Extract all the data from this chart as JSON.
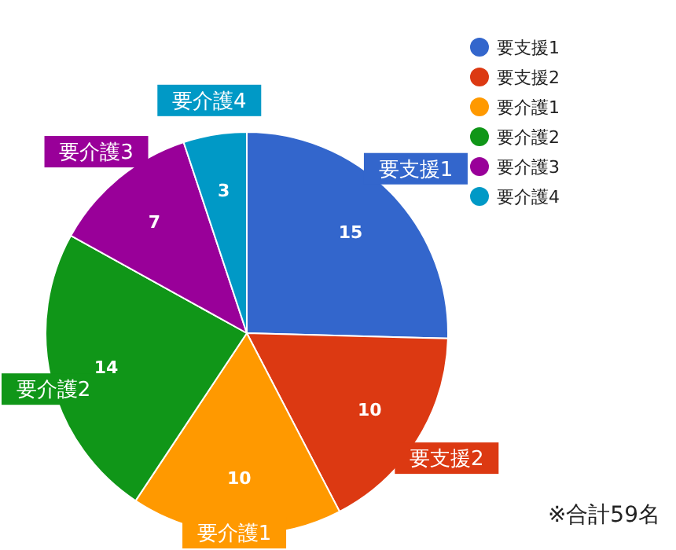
{
  "chart_data": {
    "type": "pie",
    "categories": [
      "要支援1",
      "要支援2",
      "要介護1",
      "要介護2",
      "要介護3",
      "要介護4"
    ],
    "values": [
      15,
      10,
      10,
      14,
      7,
      3
    ],
    "colors": [
      "#3366cc",
      "#dc3912",
      "#ff9900",
      "#109618",
      "#990099",
      "#0099c6"
    ],
    "data_labels": true,
    "legend": "top right",
    "annotations": [
      "※合計59名"
    ]
  }
}
